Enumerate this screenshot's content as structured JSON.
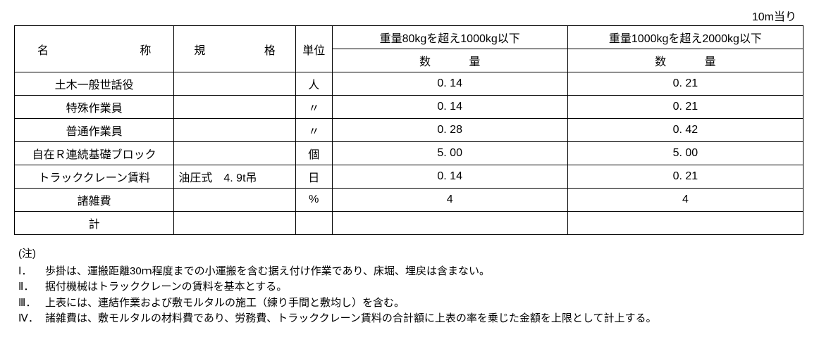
{
  "unit_label": "10m当り",
  "table": {
    "headers": {
      "name_label_left": "名",
      "name_label_right": "称",
      "spec_label_left": "規",
      "spec_label_right": "格",
      "unit_label": "単位",
      "weight_range_1": "重量80kgを超え1000kg以下",
      "weight_range_2": "重量1000kgを超え2000kg以下",
      "qty_label": "数　量"
    },
    "rows": [
      {
        "name": "土木一般世話役",
        "spec": "",
        "unit": "人",
        "q1": "0. 14",
        "q2": "0. 21"
      },
      {
        "name": "特殊作業員",
        "spec": "",
        "unit": "〃",
        "q1": "0. 14",
        "q2": "0. 21"
      },
      {
        "name": "普通作業員",
        "spec": "",
        "unit": "〃",
        "q1": "0. 28",
        "q2": "0. 42"
      },
      {
        "name": "自在Ｒ連続基礎ブロック",
        "spec": "",
        "unit": "個",
        "q1": "5. 00",
        "q2": "5. 00"
      },
      {
        "name": "トラッククレーン賃料",
        "spec": "油圧式　4. 9t吊",
        "unit": "日",
        "q1": "0. 14",
        "q2": "0. 21"
      },
      {
        "name": "諸雑費",
        "spec": "",
        "unit": "%",
        "q1": "4",
        "q2": "4"
      },
      {
        "name": "計",
        "spec": "",
        "unit": "",
        "q1": "",
        "q2": ""
      }
    ]
  },
  "notes": {
    "title": "(注)",
    "items": [
      {
        "num": "Ⅰ．",
        "text": "歩掛は、運搬距離30ｍ程度までの小運搬を含む据え付け作業であり、床堀、埋戻は含まない。"
      },
      {
        "num": "Ⅱ．",
        "text": "据付機械はトラッククレーンの賃料を基本とする。"
      },
      {
        "num": "Ⅲ．",
        "text": "上表には、連結作業および敷モルタルの施工（練り手間と敷均し）を含む。"
      },
      {
        "num": "Ⅳ．",
        "text": "諸雑費は、敷モルタルの材料費であり、労務費、トラッククレーン賃料の合計額に上表の率を乗じた金額を上限として計上する。"
      }
    ]
  }
}
